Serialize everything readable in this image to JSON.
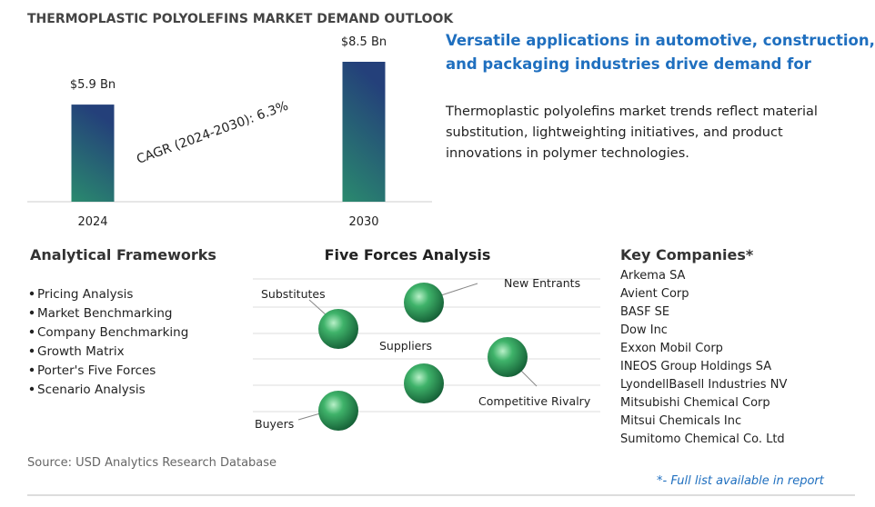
{
  "chart_data": {
    "type": "bar",
    "title": "THERMOPLASTIC POLYOLEFINS MARKET DEMAND OUTLOOK",
    "categories": [
      "2024",
      "2030"
    ],
    "values": [
      5.9,
      8.5
    ],
    "value_labels": [
      "$5.9 Bn",
      "$8.5 Bn"
    ],
    "annotation": "CAGR (2024-2030):  6.3%"
  },
  "headline": [
    "Versatile applications in automotive, construction,",
    "and packaging industries drive demand for"
  ],
  "summary": [
    "Thermoplastic polyolefins market trends reflect material",
    "substitution, lightweighting initiatives, and product",
    "innovations in polymer technologies."
  ],
  "frameworks": {
    "title": "Analytical Frameworks",
    "items": [
      "Pricing Analysis",
      "Market Benchmarking",
      "Company Benchmarking",
      "Growth Matrix",
      "Porter's Five Forces",
      "Scenario Analysis"
    ]
  },
  "five_forces": {
    "title": "Five Forces Analysis",
    "labels": [
      "Substitutes",
      "New Entrants",
      "Suppliers",
      "Competitive Rivalry",
      "Buyers"
    ]
  },
  "companies": {
    "title": "Key Companies*",
    "items": [
      "Arkema SA",
      "Avient Corp",
      "BASF SE",
      "Dow Inc",
      "Exxon Mobil Corp",
      "INEOS Group Holdings SA",
      "LyondellBasell Industries NV",
      "Mitsubishi Chemical Corp",
      "Mitsui Chemicals Inc",
      "Sumitomo Chemical Co. Ltd"
    ]
  },
  "source": "Source: USD Analytics Research Database",
  "footnote": "*- Full list available in report"
}
